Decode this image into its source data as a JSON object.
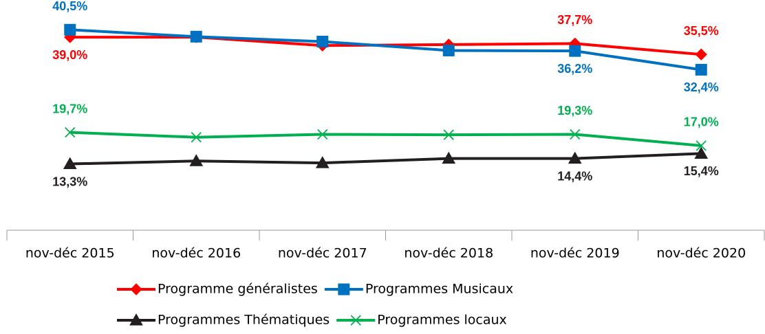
{
  "chart_data": {
    "type": "line",
    "categories": [
      "nov-déc 2015",
      "nov-déc 2016",
      "nov-déc 2017",
      "nov-déc 2018",
      "nov-déc 2019",
      "nov-déc 2020"
    ],
    "ylim": [
      0,
      45
    ],
    "series": [
      {
        "name": "Programme généralistes",
        "color": "#ff0000",
        "marker": "diamond",
        "values": [
          39.0,
          39.0,
          37.3,
          37.5,
          37.7,
          35.5
        ],
        "value_labels": [
          "39,0%",
          null,
          null,
          null,
          "37,7%",
          "35,5%"
        ]
      },
      {
        "name": "Programmes Musicaux",
        "color": "#0070c0",
        "marker": "square",
        "values": [
          40.5,
          39.1,
          38.1,
          36.3,
          36.2,
          32.4
        ],
        "value_labels": [
          "40,5%",
          null,
          null,
          null,
          "36,2%",
          "32,4%"
        ]
      },
      {
        "name": "Programmes Thématiques",
        "color": "#231f20",
        "marker": "triangle",
        "values": [
          13.3,
          13.9,
          13.5,
          14.4,
          14.4,
          15.4
        ],
        "value_labels": [
          "13,3%",
          null,
          null,
          null,
          "14,4%",
          "15,4%"
        ]
      },
      {
        "name": "Programmes locaux",
        "color": "#00b050",
        "marker": "x",
        "values": [
          19.7,
          18.7,
          19.3,
          19.2,
          19.3,
          17.0
        ],
        "value_labels": [
          "19,7%",
          null,
          null,
          null,
          "19,3%",
          "17,0%"
        ]
      }
    ]
  }
}
